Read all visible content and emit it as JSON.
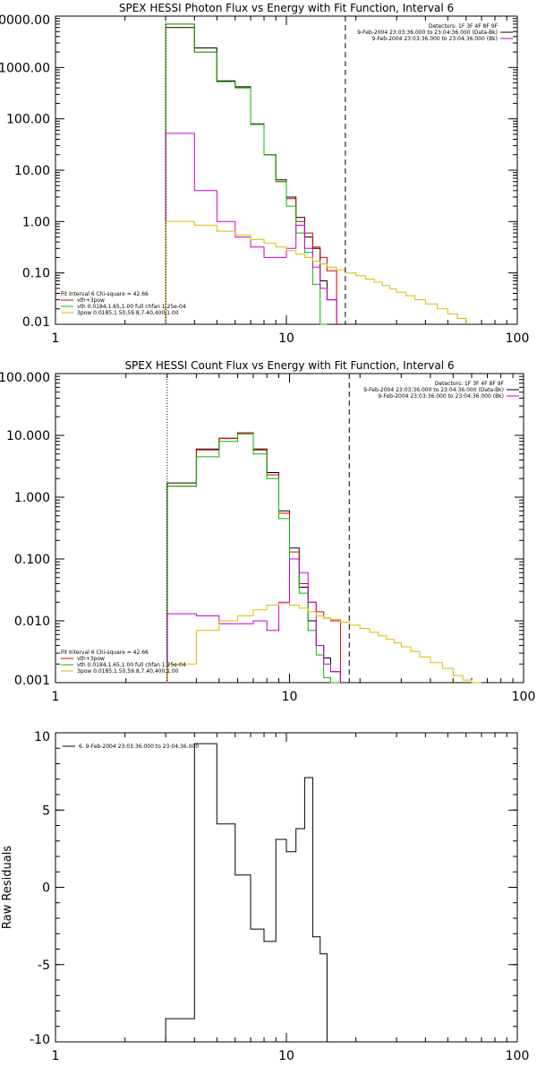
{
  "chart_data": [
    {
      "type": "line",
      "title": "SPEX HESSI Photon Flux vs Energy with Fit Function, Interval 6",
      "xscale": "log",
      "yscale": "log",
      "xlim": [
        1,
        100
      ],
      "ylim": [
        0.01,
        10000
      ],
      "x_ticks": [
        1,
        10,
        100
      ],
      "x_tick_labels": [
        "1",
        "10",
        "100"
      ],
      "y_ticks": [
        0.01,
        0.1,
        1,
        10,
        100,
        1000,
        10000
      ],
      "y_tick_labels": [
        "0.01",
        "0.10",
        "1.00",
        "10.00",
        "100.00",
        "1000.00",
        "10000.00"
      ],
      "vlines": [
        {
          "x": 3,
          "style": "dotted"
        },
        {
          "x": 18,
          "style": "dashed"
        }
      ],
      "legend_top_right": {
        "lines": [
          "Detectors: 1F 3F 4F 8F 9F",
          "9-Feb-2004 23:03:36.000 to 23:04:36.000 (Data-Bk)",
          "9-Feb-2004 23:03:36.000 to 23:04:36.000 (Bk)"
        ],
        "colors": [
          "",
          "#000000",
          "#cc00cc"
        ]
      },
      "legend_bottom_left": {
        "lines": [
          "Fit Interval 6   Chi-square = 42.66",
          "vth+3pow",
          "vth 0.0184,1.65,1.00  full chfan 1.25e-04",
          "3pow 0.0185,1.50,59.8,7.40,400,1.00"
        ],
        "colors": [
          "",
          "#dd0000",
          "#00bb00",
          "#ddbb00"
        ]
      },
      "edges": [
        3.0,
        4.0,
        5.0,
        6.0,
        7.0,
        8.0,
        9.0,
        10.0,
        11.0,
        12.0,
        13.0,
        14.0,
        15.0,
        16.5,
        18.0,
        20.0,
        22.0,
        24.0,
        26.0,
        28.0,
        30.0,
        33.0,
        36.0,
        40.0,
        45.0,
        50.0,
        55.0,
        60.0
      ],
      "series": [
        {
          "color": "#000000",
          "values": [
            6000,
            2400,
            550,
            420,
            80,
            20,
            6.5,
            3.0,
            1.2,
            0.5,
            0.3,
            0.07,
            0.03
          ]
        },
        {
          "color": "#dd0000",
          "values": [
            7000,
            2000,
            530,
            400,
            78,
            20,
            6.0,
            2.8,
            1.0,
            0.6,
            0.32,
            0.2,
            0.11
          ]
        },
        {
          "color": "#00bb00",
          "values": [
            7000,
            2000,
            530,
            400,
            78,
            20,
            6.0,
            2.0,
            0.6,
            0.25,
            0.06,
            0.01
          ]
        },
        {
          "color": "#cc00cc",
          "values": [
            52,
            4.0,
            1.0,
            0.5,
            0.32,
            0.2,
            0.2,
            0.3,
            0.85,
            0.3,
            0.13,
            0.05,
            0.03
          ]
        },
        {
          "color": "#ddbb00",
          "values": [
            1.0,
            0.85,
            0.65,
            0.55,
            0.45,
            0.38,
            0.32,
            0.27,
            0.23,
            0.2,
            0.17,
            0.15,
            0.13,
            0.115,
            0.1,
            0.088,
            0.076,
            0.066,
            0.057,
            0.049,
            0.042,
            0.036,
            0.03,
            0.025,
            0.02,
            0.016,
            0.013
          ]
        }
      ]
    },
    {
      "type": "line",
      "title": "SPEX HESSI Count Flux vs Energy with Fit Function, Interval 6",
      "xscale": "log",
      "yscale": "log",
      "xlim": [
        1,
        100
      ],
      "ylim": [
        0.001,
        100
      ],
      "x_ticks": [
        1,
        10,
        100
      ],
      "x_tick_labels": [
        "1",
        "10",
        "100"
      ],
      "y_ticks": [
        0.001,
        0.01,
        0.1,
        1,
        10,
        100
      ],
      "y_tick_labels": [
        "0.001",
        "0.010",
        "0.100",
        "1.000",
        "10.000",
        "100.000"
      ],
      "vlines": [
        {
          "x": 3,
          "style": "dotted"
        },
        {
          "x": 18,
          "style": "dashed"
        }
      ],
      "legend_top_right": {
        "lines": [
          "Detectors: 1F 3F 4F 8F 9F",
          "9-Feb-2004 23:03:36.000 to 23:04:36.000 (Data-Bk)",
          "9-Feb-2004 23:03:36.000 to 23:04:36.000 (Bk)"
        ],
        "colors": [
          "",
          "#000000",
          "#cc00cc"
        ]
      },
      "legend_bottom_left": {
        "lines": [
          "Fit Interval 6   Chi-square = 42.66",
          "vth+3pow",
          "vth 0.0184,1.65,1.00  full chfan 1.25e-04",
          "3pow 0.0185,1.50,59.8,7.40,400,1.00"
        ],
        "colors": [
          "",
          "#dd0000",
          "#00bb00",
          "#ddbb00"
        ]
      },
      "edges": [
        3.0,
        4.0,
        5.0,
        6.0,
        7.0,
        8.0,
        9.0,
        10.0,
        11.0,
        12.0,
        13.0,
        14.0,
        15.0,
        16.5,
        18.0,
        20.0,
        22.0,
        24.0,
        26.0,
        28.0,
        30.0,
        33.0,
        36.0,
        40.0,
        45.0,
        50.0,
        55.0,
        60.0,
        66.0
      ],
      "series": [
        {
          "color": "#000000",
          "values": [
            1.7,
            6.0,
            9.0,
            11.0,
            6.0,
            2.5,
            0.6,
            0.15,
            0.035,
            0.01,
            0.004,
            0.0025,
            0.0015
          ]
        },
        {
          "color": "#dd0000",
          "values": [
            1.5,
            5.8,
            9.0,
            11.0,
            5.8,
            2.3,
            0.55,
            0.13,
            0.04,
            0.02,
            0.014,
            0.011,
            0.01
          ]
        },
        {
          "color": "#00bb00",
          "values": [
            1.5,
            4.5,
            8.0,
            10.5,
            5.0,
            2.0,
            0.45,
            0.1,
            0.028,
            0.007,
            0.0028,
            0.0012,
            0.001
          ]
        },
        {
          "color": "#cc00cc",
          "values": [
            0.013,
            0.012,
            0.009,
            0.009,
            0.01,
            0.007,
            0.02,
            0.1,
            0.06,
            0.02,
            0.004,
            0.002,
            0.0015
          ]
        },
        {
          "color": "#ddbb00",
          "values": [
            0.002,
            0.007,
            0.01,
            0.012,
            0.015,
            0.018,
            0.019,
            0.018,
            0.016,
            0.014,
            0.012,
            0.011,
            0.0105,
            0.0095,
            0.0085,
            0.0075,
            0.0065,
            0.0057,
            0.005,
            0.0044,
            0.0038,
            0.0032,
            0.0026,
            0.0021,
            0.0017,
            0.0013,
            0.0011,
            0.0009
          ]
        }
      ]
    },
    {
      "type": "line",
      "title": "",
      "ylabel": "Raw Residuals",
      "xscale": "log",
      "yscale": "linear",
      "xlim": [
        1,
        100
      ],
      "ylim": [
        -10,
        10
      ],
      "x_ticks": [
        1,
        10,
        100
      ],
      "x_tick_labels": [
        "1",
        "10",
        "100"
      ],
      "y_ticks": [
        -10,
        -5,
        0,
        5,
        10
      ],
      "y_tick_labels": [
        "-10",
        "-5",
        "0",
        "5",
        "10"
      ],
      "legend_top_left": {
        "lines": [
          "6. 9-Feb-2004 23:03:36.000 to 23:04:36.000"
        ],
        "colors": [
          "#000000"
        ]
      },
      "edges": [
        3.0,
        4.0,
        5.0,
        6.0,
        7.0,
        8.0,
        9.0,
        10.0,
        11.0,
        12.0,
        13.0,
        14.0,
        15.0,
        16.5,
        18.0
      ],
      "series": [
        {
          "color": "#000000",
          "values": [
            -8.5,
            9.3,
            4.1,
            0.8,
            -2.7,
            -3.5,
            3.1,
            2.3,
            3.8,
            7.1,
            -3.2,
            -4.3,
            -10
          ]
        }
      ]
    }
  ]
}
